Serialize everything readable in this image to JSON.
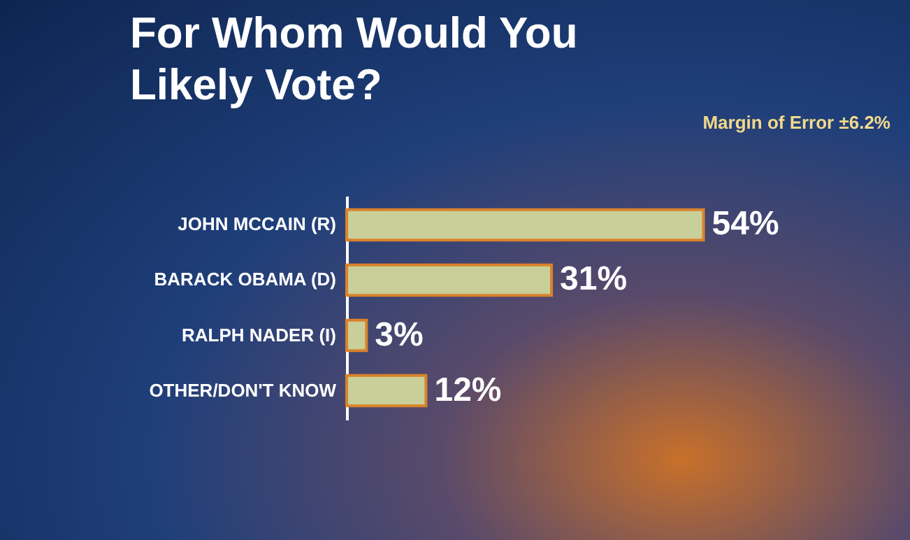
{
  "chart_data": {
    "type": "bar",
    "orientation": "horizontal",
    "title": "For Whom Would You Likely Vote?",
    "annotations": [
      "Margin of Error ±6.2%"
    ],
    "categories": [
      "JOHN MCCAIN (R)",
      "BARACK OBAMA (D)",
      "RALPH NADER (I)",
      "OTHER/DON'T KNOW"
    ],
    "values": [
      54,
      31,
      3,
      12
    ],
    "value_labels": [
      "54%",
      "31%",
      "3%",
      "12%"
    ],
    "color": "#c9cf98"
  }
}
